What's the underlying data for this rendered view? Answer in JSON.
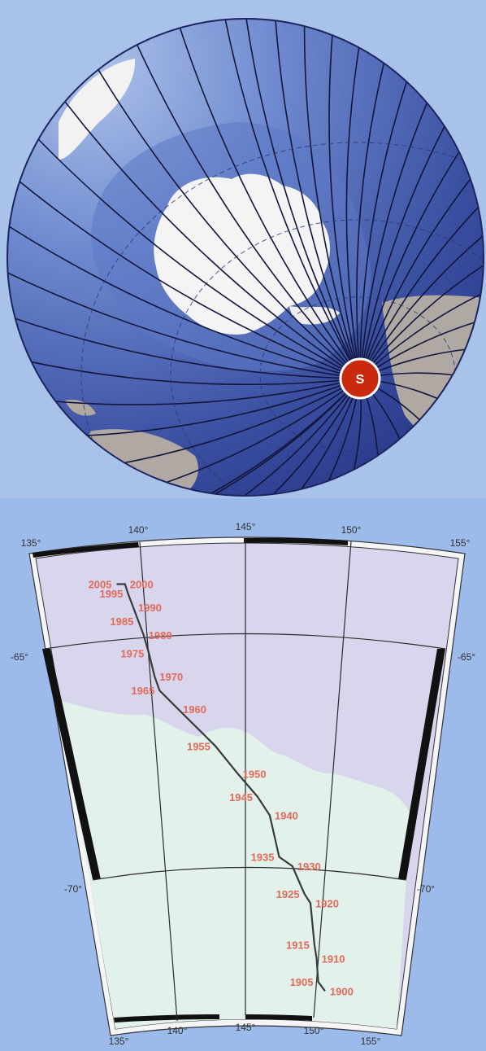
{
  "globe": {
    "pole_marker_label": "S",
    "colors": {
      "ocean_deep": "#2e3f92",
      "ocean_light": "#6f8ad0",
      "ice": "#f4f4f4",
      "land": "#b0a8a2",
      "marker_fill": "#c92a0e",
      "background": "#a9c2ea"
    }
  },
  "pole_map": {
    "colors": {
      "background": "#9cbaea",
      "sea": "#d8d6ec",
      "land": "#e2f1ea",
      "grid": "#2a2a2a",
      "year_label": "#e36a5a",
      "border_fill": "#111111"
    },
    "longitude_labels_top": [
      "135°",
      "140°",
      "145°",
      "150°",
      "155°"
    ],
    "longitude_labels_bottom": [
      "135°",
      "140°",
      "145°",
      "150°",
      "155°"
    ],
    "latitude_labels_left": [
      "-65°",
      "-70°"
    ],
    "latitude_labels_right": [
      "-65°",
      "-70°"
    ],
    "pole_positions": [
      {
        "year": "1900",
        "lon": 150.3,
        "lat": -72.4
      },
      {
        "year": "1905",
        "lon": 149.8,
        "lat": -72.2
      },
      {
        "year": "1910",
        "lon": 149.6,
        "lat": -71.7
      },
      {
        "year": "1915",
        "lon": 149.4,
        "lat": -71.4
      },
      {
        "year": "1920",
        "lon": 149.0,
        "lat": -70.5
      },
      {
        "year": "1925",
        "lon": 148.6,
        "lat": -70.3
      },
      {
        "year": "1930",
        "lon": 147.8,
        "lat": -69.7
      },
      {
        "year": "1935",
        "lon": 147.0,
        "lat": -69.5
      },
      {
        "year": "1940",
        "lon": 146.4,
        "lat": -68.6
      },
      {
        "year": "1945",
        "lon": 145.7,
        "lat": -68.2
      },
      {
        "year": "1950",
        "lon": 144.6,
        "lat": -67.7
      },
      {
        "year": "1955",
        "lon": 143.4,
        "lat": -67.1
      },
      {
        "year": "1960",
        "lon": 141.5,
        "lat": -66.3
      },
      {
        "year": "1965",
        "lon": 140.6,
        "lat": -65.9
      },
      {
        "year": "1970",
        "lon": 140.4,
        "lat": -65.6
      },
      {
        "year": "1975",
        "lon": 140.2,
        "lat": -65.1
      },
      {
        "year": "1980",
        "lon": 140.0,
        "lat": -64.7
      },
      {
        "year": "1985",
        "lon": 139.8,
        "lat": -64.4
      },
      {
        "year": "1990",
        "lon": 139.6,
        "lat": -64.1
      },
      {
        "year": "1995",
        "lon": 139.4,
        "lat": -63.8
      },
      {
        "year": "2000",
        "lon": 139.3,
        "lat": -63.6
      },
      {
        "year": "2005",
        "lon": 138.9,
        "lat": -63.6
      }
    ]
  }
}
